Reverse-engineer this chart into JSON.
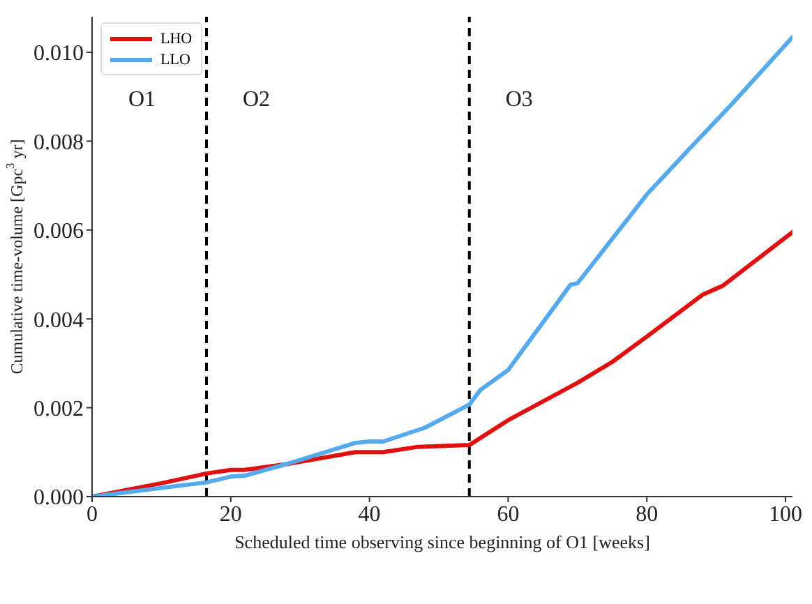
{
  "chart_data": {
    "type": "line",
    "xlabel": "Scheduled time observing since beginning of O1 [weeks]",
    "ylabel": "Cumulative time-volume [Gpc$^{3}$ yr]",
    "xlim": [
      0,
      101
    ],
    "xticks": [
      0,
      20,
      40,
      60,
      80,
      100
    ],
    "ylim": [
      0,
      0.0108
    ],
    "yticks": [
      {
        "value": 0,
        "label": "0.000"
      },
      {
        "value": 0.002,
        "label": "0.002"
      },
      {
        "value": 0.004,
        "label": "0.004"
      },
      {
        "value": 0.006,
        "label": "0.006"
      },
      {
        "value": 0.008,
        "label": "0.008"
      },
      {
        "value": 0.01,
        "label": "0.010"
      }
    ],
    "legend": "top left",
    "series": [
      {
        "name": "LHO",
        "color": "#e01010",
        "x": [
          0,
          10,
          16.5,
          20,
          22,
          28,
          38,
          42,
          47,
          54.4,
          60,
          70,
          75,
          80,
          88,
          91,
          101
        ],
        "values": [
          0,
          0.0003,
          0.00052,
          0.0006,
          0.0006,
          0.00073,
          0.001,
          0.001,
          0.00112,
          0.00116,
          0.00172,
          0.00256,
          0.00303,
          0.0036,
          0.00454,
          0.00475,
          0.00595
        ]
      },
      {
        "name": "LLO",
        "color": "#55aaee",
        "x": [
          0,
          16.5,
          20,
          22,
          28,
          38,
          40,
          42,
          48,
          54.4,
          56,
          60,
          69,
          70,
          80,
          87,
          92,
          101
        ],
        "values": [
          0,
          0.00032,
          0.00045,
          0.00047,
          0.00073,
          0.00121,
          0.00124,
          0.00124,
          0.00155,
          0.00207,
          0.0024,
          0.00285,
          0.00477,
          0.0048,
          0.0068,
          0.00797,
          0.00879,
          0.01034
        ]
      }
    ],
    "ref_lines": [
      {
        "axis": "x",
        "value": 16.5,
        "color": "#000000",
        "line_style": "dashed"
      },
      {
        "axis": "x",
        "value": 54.4,
        "color": "#000000",
        "line_style": "dashed"
      }
    ],
    "annotations": [
      "O1",
      "O2",
      "O3"
    ]
  }
}
